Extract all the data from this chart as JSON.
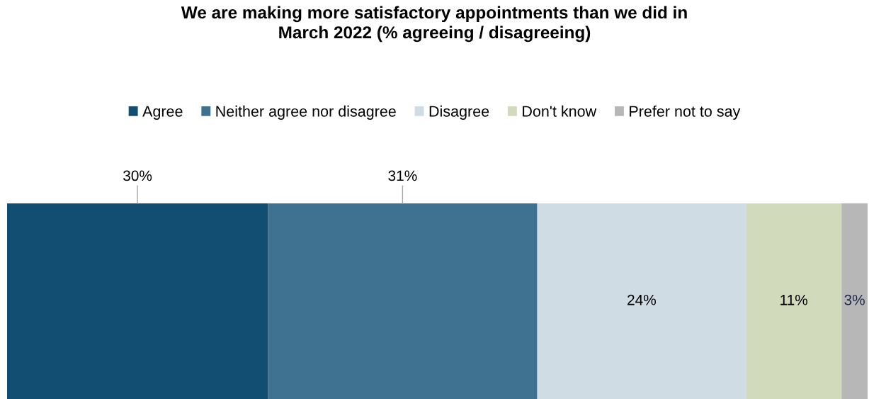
{
  "chart_data": {
    "type": "bar",
    "orientation": "horizontal",
    "stacked": true,
    "title": "We are making more satisfactory appointments than we did in\nMarch 2022 (% agreeing / disagreeing)",
    "categories": [
      null
    ],
    "series": [
      {
        "name": "Agree",
        "color": "#114e72",
        "values": [
          30
        ],
        "value_labels": [
          "30%"
        ]
      },
      {
        "name": "Neither agree nor disagree",
        "color": "#3f7291",
        "values": [
          31
        ],
        "value_labels": [
          "31%"
        ]
      },
      {
        "name": "Disagree",
        "color": "#cfdce4",
        "values": [
          24
        ],
        "value_labels": [
          "24%"
        ]
      },
      {
        "name": "Don't know",
        "color": "#d1dbbb",
        "values": [
          11
        ],
        "value_labels": [
          "11%"
        ]
      },
      {
        "name": "Prefer not to say",
        "color": "#b7b7b7",
        "values": [
          3
        ],
        "value_labels": [
          "3%"
        ]
      }
    ],
    "legend": "top"
  }
}
